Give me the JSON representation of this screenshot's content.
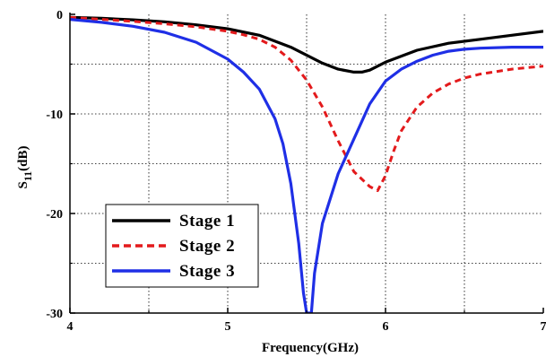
{
  "chart_data": {
    "type": "line",
    "title": "",
    "xlabel": "Frequency(GHz)",
    "ylabel": {
      "main": "S",
      "sub": "11",
      "unit": "(dB)"
    },
    "xlim": [
      4,
      7
    ],
    "ylim": [
      -30,
      0
    ],
    "x_ticks": [
      "4",
      "5",
      "6",
      "7"
    ],
    "y_ticks": [
      "0",
      "-10",
      "-20",
      "-30"
    ],
    "grid": true,
    "legend_position": "bottom-left",
    "series": [
      {
        "name": "Stage 1",
        "color": "#000000",
        "style": "solid",
        "x": [
          4.0,
          4.2,
          4.4,
          4.6,
          4.8,
          5.0,
          5.2,
          5.4,
          5.6,
          5.7,
          5.8,
          5.85,
          5.9,
          6.0,
          6.2,
          6.4,
          6.6,
          6.8,
          7.0
        ],
        "y": [
          -0.3,
          -0.4,
          -0.55,
          -0.75,
          -1.05,
          -1.45,
          -2.1,
          -3.3,
          -4.9,
          -5.5,
          -5.8,
          -5.8,
          -5.6,
          -4.8,
          -3.6,
          -2.9,
          -2.5,
          -2.1,
          -1.7
        ]
      },
      {
        "name": "Stage 2",
        "color": "#e31a1c",
        "style": "dashed",
        "x": [
          4.0,
          4.2,
          4.4,
          4.6,
          4.8,
          5.0,
          5.1,
          5.2,
          5.3,
          5.4,
          5.5,
          5.6,
          5.7,
          5.8,
          5.9,
          5.95,
          6.0,
          6.05,
          6.1,
          6.2,
          6.3,
          6.4,
          6.5,
          6.6,
          6.8,
          7.0
        ],
        "y": [
          -0.3,
          -0.5,
          -0.7,
          -0.95,
          -1.25,
          -1.7,
          -2.05,
          -2.5,
          -3.3,
          -4.6,
          -6.6,
          -9.3,
          -12.7,
          -15.8,
          -17.3,
          -17.7,
          -16.2,
          -13.8,
          -11.7,
          -9.3,
          -7.9,
          -7.0,
          -6.4,
          -6.0,
          -5.5,
          -5.2
        ]
      },
      {
        "name": "Stage 3",
        "color": "#1f2fe6",
        "style": "solid",
        "x": [
          4.0,
          4.2,
          4.4,
          4.6,
          4.8,
          5.0,
          5.1,
          5.2,
          5.3,
          5.35,
          5.4,
          5.45,
          5.48,
          5.5,
          5.53,
          5.55,
          5.6,
          5.7,
          5.8,
          5.9,
          6.0,
          6.1,
          6.2,
          6.3,
          6.4,
          6.5,
          6.6,
          6.8,
          7.0
        ],
        "y": [
          -0.5,
          -0.8,
          -1.2,
          -1.8,
          -2.8,
          -4.5,
          -5.8,
          -7.5,
          -10.5,
          -13.0,
          -17.0,
          -23.0,
          -28.0,
          -30.0,
          -30.0,
          -26.0,
          -21.0,
          -16.0,
          -12.5,
          -9.0,
          -6.7,
          -5.5,
          -4.7,
          -4.1,
          -3.7,
          -3.5,
          -3.4,
          -3.3,
          -3.3
        ]
      }
    ]
  }
}
